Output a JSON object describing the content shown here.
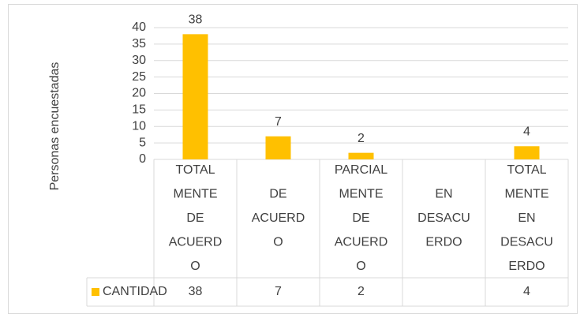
{
  "chart_data": {
    "type": "bar",
    "y_axis_label": "Personas encuestadas",
    "categories": [
      [
        "TOTAL",
        "MENTE",
        "DE",
        "ACUERD",
        "O"
      ],
      [
        "DE",
        "ACUERD",
        "O"
      ],
      [
        "PARCIAL",
        "MENTE",
        "DE",
        "ACUERD",
        "O"
      ],
      [
        "EN",
        "DESACU",
        "ERDO"
      ],
      [
        "TOTAL",
        "MENTE",
        "EN",
        "DESACU",
        "ERDO"
      ]
    ],
    "series": [
      {
        "name": "CANTIDAD",
        "color": "#ffc000",
        "values": [
          38,
          7,
          2,
          null,
          4
        ]
      }
    ],
    "ylim": [
      0,
      40
    ],
    "yticks": [
      0,
      5,
      10,
      15,
      20,
      25,
      30,
      35,
      40
    ],
    "grid": true
  }
}
